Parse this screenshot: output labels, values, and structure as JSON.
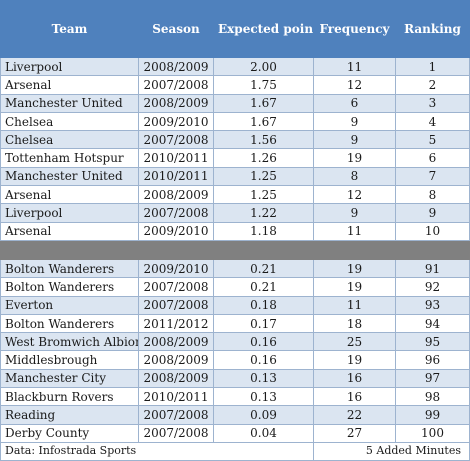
{
  "headers": {
    "team": "Team",
    "season": "Season",
    "expected": "Expected points from conceding first",
    "frequency": "Frequency",
    "ranking": "Ranking"
  },
  "top_rows": [
    {
      "team": "Liverpool",
      "season": "2008/2009",
      "expected": "2.00",
      "frequency": "11",
      "ranking": "1"
    },
    {
      "team": "Arsenal",
      "season": "2007/2008",
      "expected": "1.75",
      "frequency": "12",
      "ranking": "2"
    },
    {
      "team": "Manchester United",
      "season": "2008/2009",
      "expected": "1.67",
      "frequency": "6",
      "ranking": "3"
    },
    {
      "team": "Chelsea",
      "season": "2009/2010",
      "expected": "1.67",
      "frequency": "9",
      "ranking": "4"
    },
    {
      "team": "Chelsea",
      "season": "2007/2008",
      "expected": "1.56",
      "frequency": "9",
      "ranking": "5"
    },
    {
      "team": "Tottenham Hotspur",
      "season": "2010/2011",
      "expected": "1.26",
      "frequency": "19",
      "ranking": "6"
    },
    {
      "team": "Manchester United",
      "season": "2010/2011",
      "expected": "1.25",
      "frequency": "8",
      "ranking": "7"
    },
    {
      "team": "Arsenal",
      "season": "2008/2009",
      "expected": "1.25",
      "frequency": "12",
      "ranking": "8"
    },
    {
      "team": "Liverpool",
      "season": "2007/2008",
      "expected": "1.22",
      "frequency": "9",
      "ranking": "9"
    },
    {
      "team": "Arsenal",
      "season": "2009/2010",
      "expected": "1.18",
      "frequency": "11",
      "ranking": "10"
    }
  ],
  "bottom_rows": [
    {
      "team": "Bolton Wanderers",
      "season": "2009/2010",
      "expected": "0.21",
      "frequency": "19",
      "ranking": "91"
    },
    {
      "team": "Bolton Wanderers",
      "season": "2007/2008",
      "expected": "0.21",
      "frequency": "19",
      "ranking": "92"
    },
    {
      "team": "Everton",
      "season": "2007/2008",
      "expected": "0.18",
      "frequency": "11",
      "ranking": "93"
    },
    {
      "team": "Bolton Wanderers",
      "season": "2011/2012",
      "expected": "0.17",
      "frequency": "18",
      "ranking": "94"
    },
    {
      "team": "West Bromwich Albion",
      "season": "2008/2009",
      "expected": "0.16",
      "frequency": "25",
      "ranking": "95"
    },
    {
      "team": "Middlesbrough",
      "season": "2008/2009",
      "expected": "0.16",
      "frequency": "19",
      "ranking": "96"
    },
    {
      "team": "Manchester City",
      "season": "2008/2009",
      "expected": "0.13",
      "frequency": "16",
      "ranking": "97"
    },
    {
      "team": "Blackburn Rovers",
      "season": "2010/2011",
      "expected": "0.13",
      "frequency": "16",
      "ranking": "98"
    },
    {
      "team": "Reading",
      "season": "2007/2008",
      "expected": "0.09",
      "frequency": "22",
      "ranking": "99"
    },
    {
      "team": "Derby County",
      "season": "2007/2008",
      "expected": "0.04",
      "frequency": "27",
      "ranking": "100"
    }
  ],
  "footer": {
    "source": "Data: Infostrada Sports",
    "credit": "5 Added Minutes"
  },
  "colors": {
    "header_bg": "#4f81bd",
    "band": "#dbe5f1",
    "separator": "#808080",
    "grid": "#9db3cf"
  }
}
